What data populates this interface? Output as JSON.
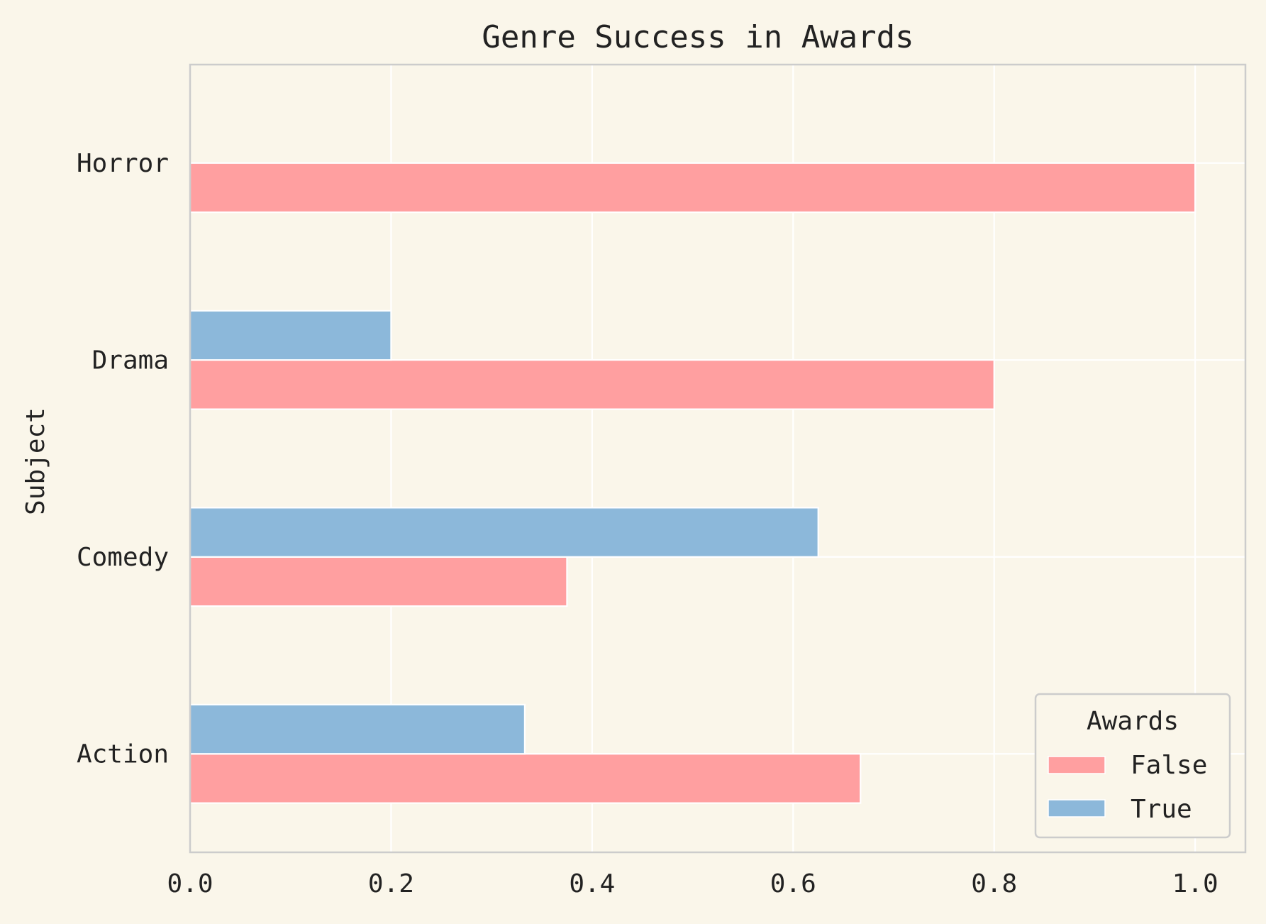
{
  "chart_data": {
    "type": "bar",
    "orientation": "horizontal",
    "title": "Genre Success in Awards",
    "xlabel": "",
    "ylabel": "Subject",
    "categories": [
      "Action",
      "Comedy",
      "Drama",
      "Horror"
    ],
    "series": [
      {
        "name": "False",
        "values": [
          0.667,
          0.375,
          0.8,
          1.0
        ],
        "color": "#ff9fa0"
      },
      {
        "name": "True",
        "values": [
          0.333,
          0.625,
          0.2,
          0.0
        ],
        "color": "#8cb8da"
      }
    ],
    "xlim": [
      0,
      1.05
    ],
    "xticks": [
      0.0,
      0.2,
      0.4,
      0.6,
      0.8,
      1.0
    ],
    "xtick_labels": [
      "0.0",
      "0.2",
      "0.4",
      "0.6",
      "0.8",
      "1.0"
    ],
    "grid": true,
    "legend": {
      "title": "Awards",
      "placement": "bottom-right"
    },
    "colors": {
      "background": "#faf6ea",
      "grid": "#ffffff",
      "frame": "#cccccc",
      "text": "#222222"
    }
  }
}
